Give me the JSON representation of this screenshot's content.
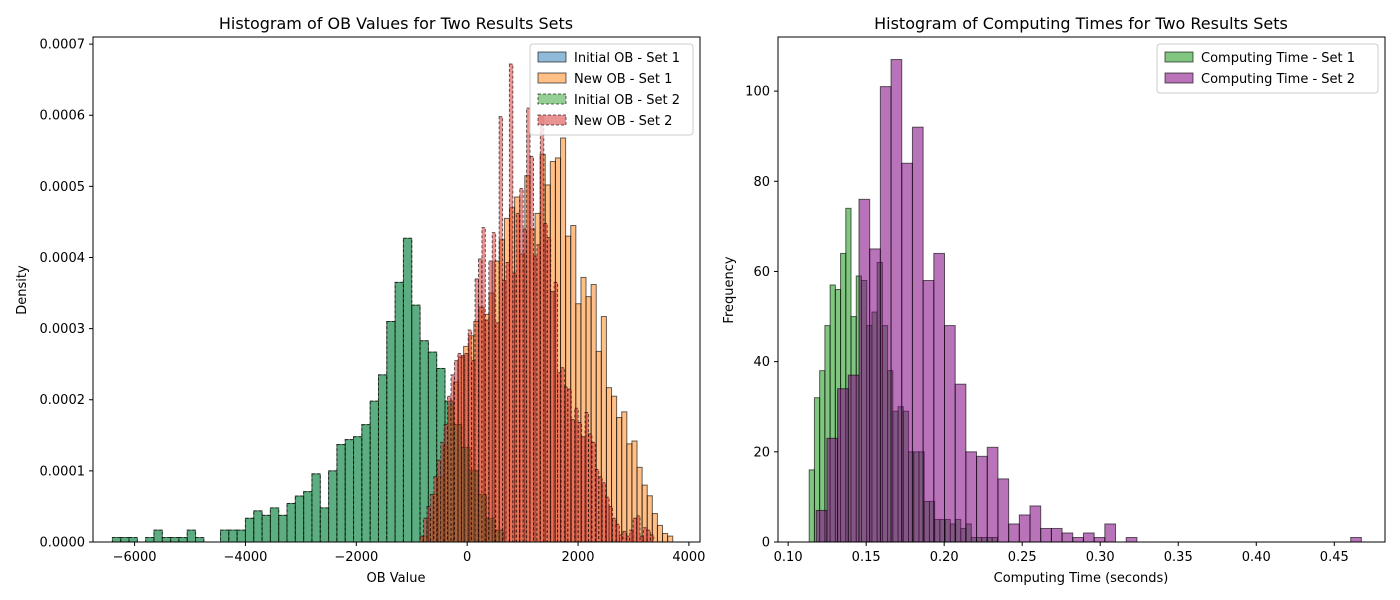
{
  "chart_data": [
    {
      "type": "histogram",
      "title": "Histogram of OB Values for Two Results Sets",
      "xlabel": "OB Value",
      "ylabel": "Density",
      "xlim": [
        -6750,
        4200
      ],
      "ylim": [
        0,
        0.00071
      ],
      "xticks": [
        -6000,
        -4000,
        -2000,
        0,
        2000,
        4000
      ],
      "xtick_labels": [
        "−6000",
        "−4000",
        "−2000",
        "0",
        "2000",
        "4000"
      ],
      "yticks": [
        0,
        0.0001,
        0.0002,
        0.0003,
        0.0004,
        0.0005,
        0.0006,
        0.0007
      ],
      "ytick_labels": [
        "0.0000",
        "0.0001",
        "0.0002",
        "0.0003",
        "0.0004",
        "0.0005",
        "0.0006",
        "0.0007"
      ],
      "legend_position": "top-right",
      "series": [
        {
          "name": "Initial OB - Set 1",
          "color": "#1f77b4",
          "alpha": 0.5,
          "dashed": false,
          "bin_start": -6400,
          "bin_width": 150,
          "values": [
            6.25e-06,
            6.25e-06,
            6.25e-06,
            0,
            6.25e-06,
            1.67e-05,
            6.25e-06,
            6.25e-06,
            6.25e-06,
            1.67e-05,
            6.25e-06,
            0,
            0,
            1.67e-05,
            1.67e-05,
            1.67e-05,
            3.33e-05,
            4.38e-05,
            3.75e-05,
            4.79e-05,
            3.75e-05,
            5.42e-05,
            6.46e-05,
            7.08e-05,
            9.58e-05,
            4.79e-05,
            0.0001,
            0.000137,
            0.000144,
            0.000148,
            0.000165,
            0.000198,
            0.000235,
            0.00031,
            0.000365,
            0.000427,
            0.000333,
            0.000283,
            0.000267,
            0.000244,
            0.000198,
            0.000165,
            0.000133,
            0.0001,
            6.67e-05,
            3.33e-05,
            1.67e-05
          ]
        },
        {
          "name": "New OB - Set 1",
          "color": "#ff7f0e",
          "alpha": 0.5,
          "dashed": false,
          "bin_start": -800,
          "bin_width": 92,
          "values": [
            8.3e-06,
            3.33e-05,
            6.67e-05,
            9.17e-05,
            0.000135,
            0.00019,
            0.000225,
            0.00026,
            0.000275,
            0.00029,
            0.00031,
            0.00033,
            0.00032,
            0.00035,
            0.000395,
            0.000425,
            0.000455,
            0.00047,
            0.000485,
            0.000405,
            0.000515,
            0.00044,
            0.000462,
            0.000545,
            0.000502,
            0.000535,
            0.00054,
            0.000568,
            0.00043,
            0.000445,
            0.000335,
            0.000372,
            0.000345,
            0.000362,
            0.000268,
            0.000317,
            0.000217,
            0.000205,
            0.000175,
            0.000183,
            0.000138,
            0.000142,
            0.000105,
            8e-05,
            6.5e-05,
            4e-05,
            2.33e-05,
            1.2e-05,
            8.3e-06
          ]
        },
        {
          "name": "Initial OB - Set 2",
          "color": "#2ca02c",
          "alpha": 0.5,
          "dashed": true,
          "bin_start": -6400,
          "bin_width": 150,
          "values": [
            6.25e-06,
            6.25e-06,
            6.25e-06,
            0,
            6.25e-06,
            1.67e-05,
            6.25e-06,
            6.25e-06,
            6.25e-06,
            1.67e-05,
            6.25e-06,
            0,
            0,
            1.67e-05,
            1.67e-05,
            1.67e-05,
            3.33e-05,
            4.38e-05,
            3.75e-05,
            4.79e-05,
            3.75e-05,
            5.42e-05,
            6.46e-05,
            7.08e-05,
            9.58e-05,
            4.79e-05,
            0.0001,
            0.000137,
            0.000144,
            0.000148,
            0.000165,
            0.000198,
            0.000235,
            0.00031,
            0.000365,
            0.000427,
            0.000333,
            0.000283,
            0.000267,
            0.000244,
            0.000198,
            0.000165,
            0.000133,
            0.0001,
            6.67e-05,
            3.33e-05,
            1.67e-05
          ]
        },
        {
          "name": "New OB - Set 2",
          "color": "#d62728",
          "alpha": 0.5,
          "dashed": true,
          "bin_start": -850,
          "bin_width": 62,
          "values": [
            8.3e-06,
            3.33e-05,
            5e-05,
            6.67e-05,
            9.17e-05,
            0.000115,
            0.00014,
            0.000165,
            0.000205,
            0.000235,
            0.000255,
            0.000265,
            0.000262,
            0.000265,
            0.000298,
            0.000255,
            0.00037,
            0.000398,
            0.000442,
            0.000312,
            0.000395,
            0.000435,
            0.000308,
            0.000598,
            0.000368,
            0.000393,
            0.000672,
            0.000378,
            0.000462,
            0.000497,
            0.00044,
            0.00061,
            0.000542,
            0.000402,
            0.000418,
            0.000598,
            0.000448,
            0.000428,
            0.000352,
            0.000365,
            0.000238,
            0.000245,
            0.000218,
            0.000215,
            0.000172,
            0.000188,
            0.000168,
            0.000148,
            0.000182,
            0.000152,
            0.00014,
            0.000102,
            9.17e-05,
            8.33e-05,
            6.3e-05,
            5e-05,
            3.33e-05,
            2.5e-05,
            1e-05,
            1.5e-05,
            8.3e-06,
            1.67e-05,
            3.33e-05,
            3.67e-05,
            8.3e-06,
            2e-05,
            1.67e-05,
            1e-05
          ]
        }
      ]
    },
    {
      "type": "histogram",
      "title": "Histogram of Computing Times for Two Results Sets",
      "xlabel": "Computing Time (seconds)",
      "ylabel": "Frequency",
      "xlim": [
        0.0935,
        0.4825
      ],
      "ylim": [
        0,
        112
      ],
      "xticks": [
        0.1,
        0.15,
        0.2,
        0.25,
        0.3,
        0.35,
        0.4,
        0.45
      ],
      "xtick_labels": [
        "0.10",
        "0.15",
        "0.20",
        "0.25",
        "0.30",
        "0.35",
        "0.40",
        "0.45"
      ],
      "yticks": [
        0,
        20,
        40,
        60,
        80,
        100
      ],
      "ytick_labels": [
        "0",
        "20",
        "40",
        "60",
        "80",
        "100"
      ],
      "legend_position": "top-right",
      "series": [
        {
          "name": "Computing Time - Set 1",
          "color": "#2ca02c",
          "alpha": 0.6,
          "bin_start": 0.1135,
          "bin_width": 0.00335,
          "values": [
            16,
            32,
            38,
            48,
            57,
            56,
            64,
            74,
            50,
            59,
            58,
            48,
            51,
            62,
            48,
            38,
            29,
            30,
            29,
            20,
            20,
            20,
            9,
            9,
            5,
            5,
            5,
            4,
            5,
            3,
            4,
            1,
            1,
            1,
            1,
            1
          ]
        },
        {
          "name": "Computing Time - Set 2",
          "color": "#800080",
          "alpha": 0.55,
          "bin_start": 0.118,
          "bin_width": 0.00685,
          "values": [
            7,
            23,
            34,
            37,
            76,
            65,
            101,
            107,
            84,
            92,
            58,
            64,
            48,
            35,
            20,
            19,
            21,
            14,
            4,
            6,
            8,
            3,
            3,
            2,
            1,
            2,
            1,
            4,
            0,
            1,
            0,
            0,
            0,
            0,
            0,
            0,
            0,
            0,
            0,
            0,
            0,
            0,
            0,
            0,
            0,
            0,
            0,
            0,
            0,
            0,
            1
          ]
        }
      ]
    }
  ]
}
